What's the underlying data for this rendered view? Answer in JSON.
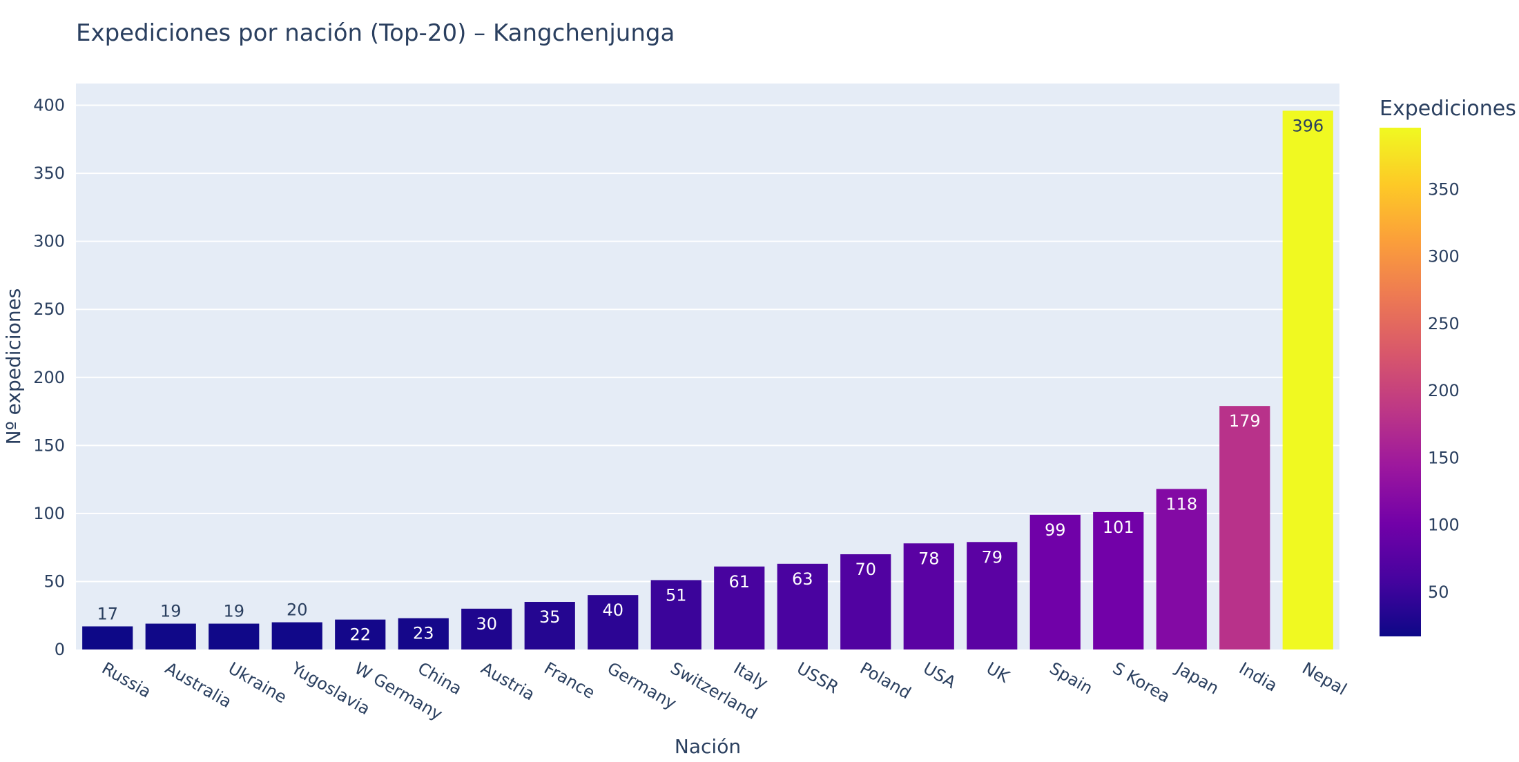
{
  "chart_data": {
    "type": "bar",
    "title": "Expediciones por nación (Top-20) – Kangchenjunga",
    "xlabel": "Nación",
    "ylabel": "Nº expediciones",
    "categories": [
      "Russia",
      "Australia",
      "Ukraine",
      "Yugoslavia",
      "W Germany",
      "China",
      "Austria",
      "France",
      "Germany",
      "Switzerland",
      "Italy",
      "USSR",
      "Poland",
      "USA",
      "UK",
      "Spain",
      "S Korea",
      "Japan",
      "India",
      "Nepal"
    ],
    "values": [
      17,
      19,
      19,
      20,
      22,
      23,
      30,
      35,
      40,
      51,
      61,
      63,
      70,
      78,
      79,
      99,
      101,
      118,
      179,
      396
    ],
    "ylim": [
      0,
      416
    ],
    "yticks": [
      0,
      50,
      100,
      150,
      200,
      250,
      300,
      350,
      400
    ],
    "grid": true,
    "colorscale": "plasma",
    "colorbar": {
      "title": "Expediciones",
      "range": [
        17,
        396
      ],
      "ticks": [
        50,
        100,
        150,
        200,
        250,
        300,
        350
      ]
    },
    "colors": {
      "plot_background": "#e5ecf6",
      "gridline": "#ffffff",
      "text": "#2a3f5f"
    }
  }
}
